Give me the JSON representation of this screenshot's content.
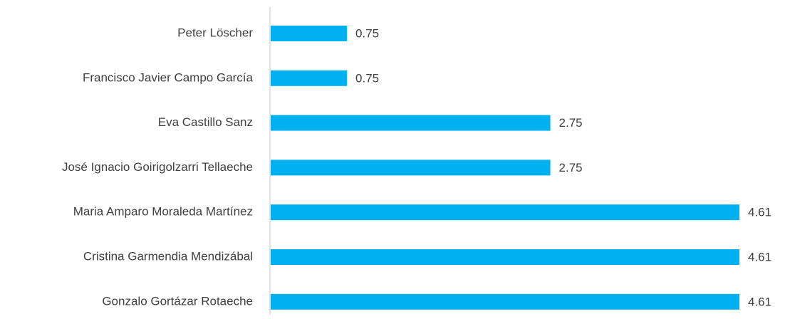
{
  "chart_data": {
    "type": "bar",
    "orientation": "horizontal",
    "categories": [
      "Peter Löscher",
      "Francisco Javier Campo García",
      "Eva Castillo Sanz",
      "José Ignacio Goirigolzarri Tellaeche",
      "Maria Amparo Moraleda Martínez",
      "Cristina Garmendia Mendizábal",
      "Gonzalo Gortázar Rotaeche"
    ],
    "values": [
      0.75,
      0.75,
      2.75,
      2.75,
      4.61,
      4.61,
      4.61
    ],
    "color": "#00b0f0"
  }
}
